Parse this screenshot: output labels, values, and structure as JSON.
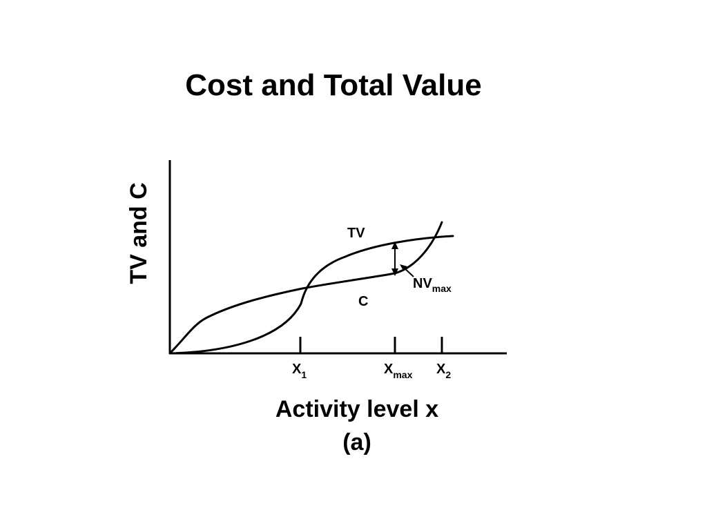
{
  "chart_data": {
    "type": "line",
    "title": "Cost and Total Value",
    "xlabel": "Activity level x",
    "ylabel": "TV and C",
    "caption": "(a)",
    "grid": false,
    "legend": "none",
    "ticks": [
      {
        "base": "X",
        "sub": "1"
      },
      {
        "base": "X",
        "sub": "max"
      },
      {
        "base": "X",
        "sub": "2"
      }
    ],
    "series": [
      {
        "name": "TV"
      },
      {
        "name": "C"
      }
    ],
    "annotations": [
      {
        "base": "NV",
        "sub": "max"
      }
    ]
  }
}
